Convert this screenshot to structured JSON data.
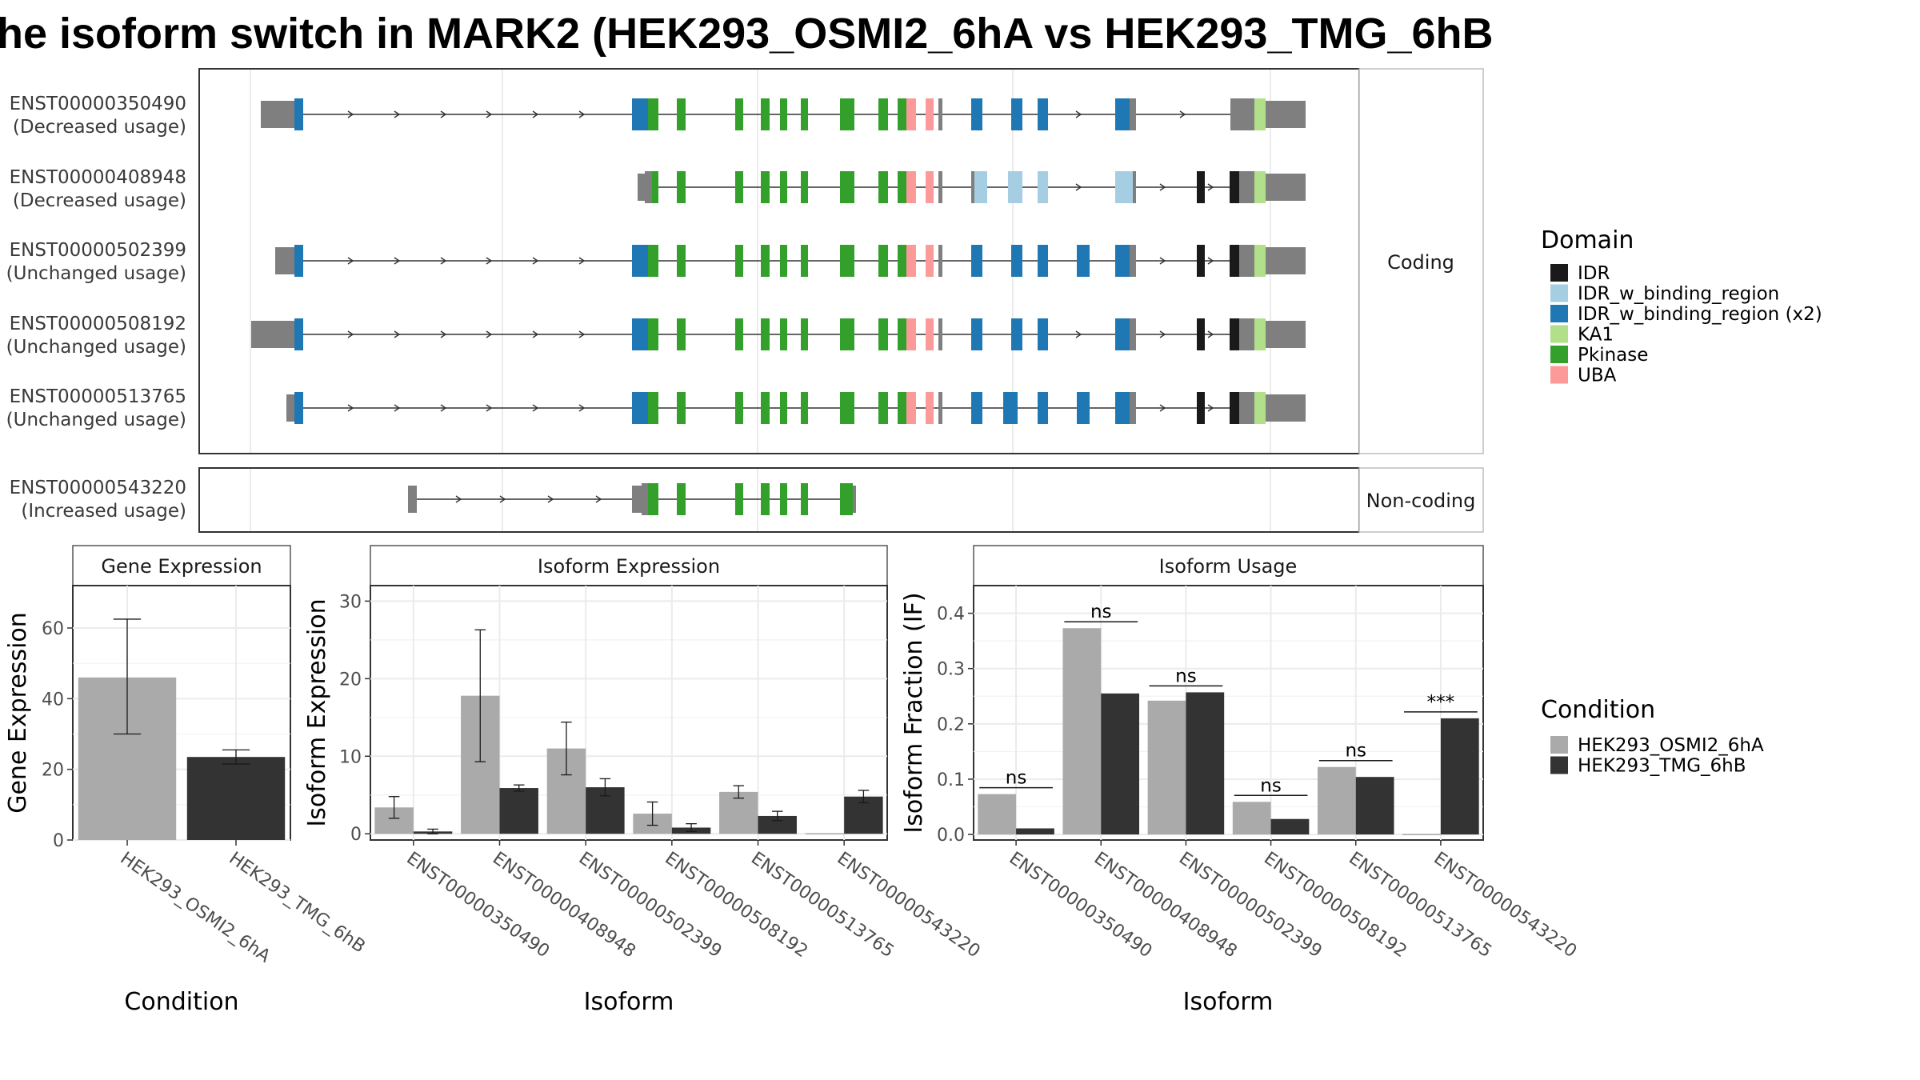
{
  "title": "he isoform switch in MARK2 (HEK293_OSMI2_6hA vs HEK293_TMG_6hB",
  "structure": {
    "coding_label": "Coding",
    "noncoding_label": "Non-coding",
    "isoforms": [
      {
        "id": "ENST00000350490",
        "usage": "(Decreased usage)",
        "group": "coding"
      },
      {
        "id": "ENST00000408948",
        "usage": "(Decreased usage)",
        "group": "coding"
      },
      {
        "id": "ENST00000502399",
        "usage": "(Unchanged usage)",
        "group": "coding"
      },
      {
        "id": "ENST00000508192",
        "usage": "(Unchanged usage)",
        "group": "coding"
      },
      {
        "id": "ENST00000513765",
        "usage": "(Unchanged usage)",
        "group": "coding"
      },
      {
        "id": "ENST00000543220",
        "usage": "(Increased usage)",
        "group": "noncoding"
      }
    ]
  },
  "domain_legend": {
    "title": "Domain",
    "items": [
      {
        "label": "IDR",
        "color": "#1a1a1a"
      },
      {
        "label": "IDR_w_binding_region",
        "color": "#a6cee3"
      },
      {
        "label": "IDR_w_binding_region (x2)",
        "color": "#1f78b4"
      },
      {
        "label": "KA1",
        "color": "#b2df8a"
      },
      {
        "label": "Pkinase",
        "color": "#33a02c"
      },
      {
        "label": "UBA",
        "color": "#fb9a99"
      }
    ]
  },
  "condition_legend": {
    "title": "Condition",
    "items": [
      {
        "label": "HEK293_OSMI2_6hA",
        "color": "#aaaaaa"
      },
      {
        "label": "HEK293_TMG_6hB",
        "color": "#333333"
      }
    ]
  },
  "chart_data": [
    {
      "type": "bar",
      "title": "Gene Expression",
      "xlabel": "Condition",
      "ylabel": "Gene Expression",
      "categories": [
        "HEK293_OSMI2_6hA",
        "HEK293_TMG_6hB"
      ],
      "values": [
        46,
        23.5
      ],
      "error_low": [
        30,
        21.5
      ],
      "error_high": [
        62.5,
        25.5
      ],
      "ylim": [
        0,
        72
      ],
      "yticks": [
        0,
        20,
        40,
        60
      ]
    },
    {
      "type": "bar",
      "title": "Isoform Expression",
      "xlabel": "Isoform",
      "ylabel": "Isoform Expression",
      "categories": [
        "ENST00000350490",
        "ENST00000408948",
        "ENST00000502399",
        "ENST00000508192",
        "ENST00000513765",
        "ENST00000543220"
      ],
      "series": [
        {
          "name": "HEK293_OSMI2_6hA",
          "values": [
            3.4,
            17.8,
            11.0,
            2.6,
            5.4,
            0.0
          ],
          "error_low": [
            2.0,
            9.3,
            7.6,
            1.1,
            4.6,
            0.0
          ],
          "error_high": [
            4.8,
            26.3,
            14.4,
            4.1,
            6.2,
            0.0
          ]
        },
        {
          "name": "HEK293_TMG_6hB",
          "values": [
            0.3,
            5.9,
            6.0,
            0.8,
            2.3,
            4.8
          ],
          "error_low": [
            0.0,
            5.5,
            4.9,
            0.3,
            1.7,
            4.0
          ],
          "error_high": [
            0.6,
            6.3,
            7.1,
            1.3,
            2.9,
            5.6
          ]
        }
      ],
      "ylim": [
        -0.8,
        32
      ],
      "yticks": [
        0,
        10,
        20,
        30
      ]
    },
    {
      "type": "bar",
      "title": "Isoform Usage",
      "xlabel": "Isoform",
      "ylabel": "Isoform Fraction (IF)",
      "categories": [
        "ENST00000350490",
        "ENST00000408948",
        "ENST00000502399",
        "ENST00000508192",
        "ENST00000513765",
        "ENST00000543220"
      ],
      "series": [
        {
          "name": "HEK293_OSMI2_6hA",
          "values": [
            0.073,
            0.373,
            0.242,
            0.059,
            0.122,
            0.0
          ]
        },
        {
          "name": "HEK293_TMG_6hB",
          "values": [
            0.011,
            0.255,
            0.257,
            0.028,
            0.104,
            0.21
          ]
        }
      ],
      "significance": [
        "ns",
        "ns",
        "ns",
        "ns",
        "ns",
        "***"
      ],
      "ylim": [
        -0.01,
        0.45
      ],
      "yticks": [
        0.0,
        0.1,
        0.2,
        0.3,
        0.4
      ],
      "ytick_labels": [
        "0.0",
        "0.1",
        "0.2",
        "0.3",
        "0.4"
      ]
    }
  ]
}
